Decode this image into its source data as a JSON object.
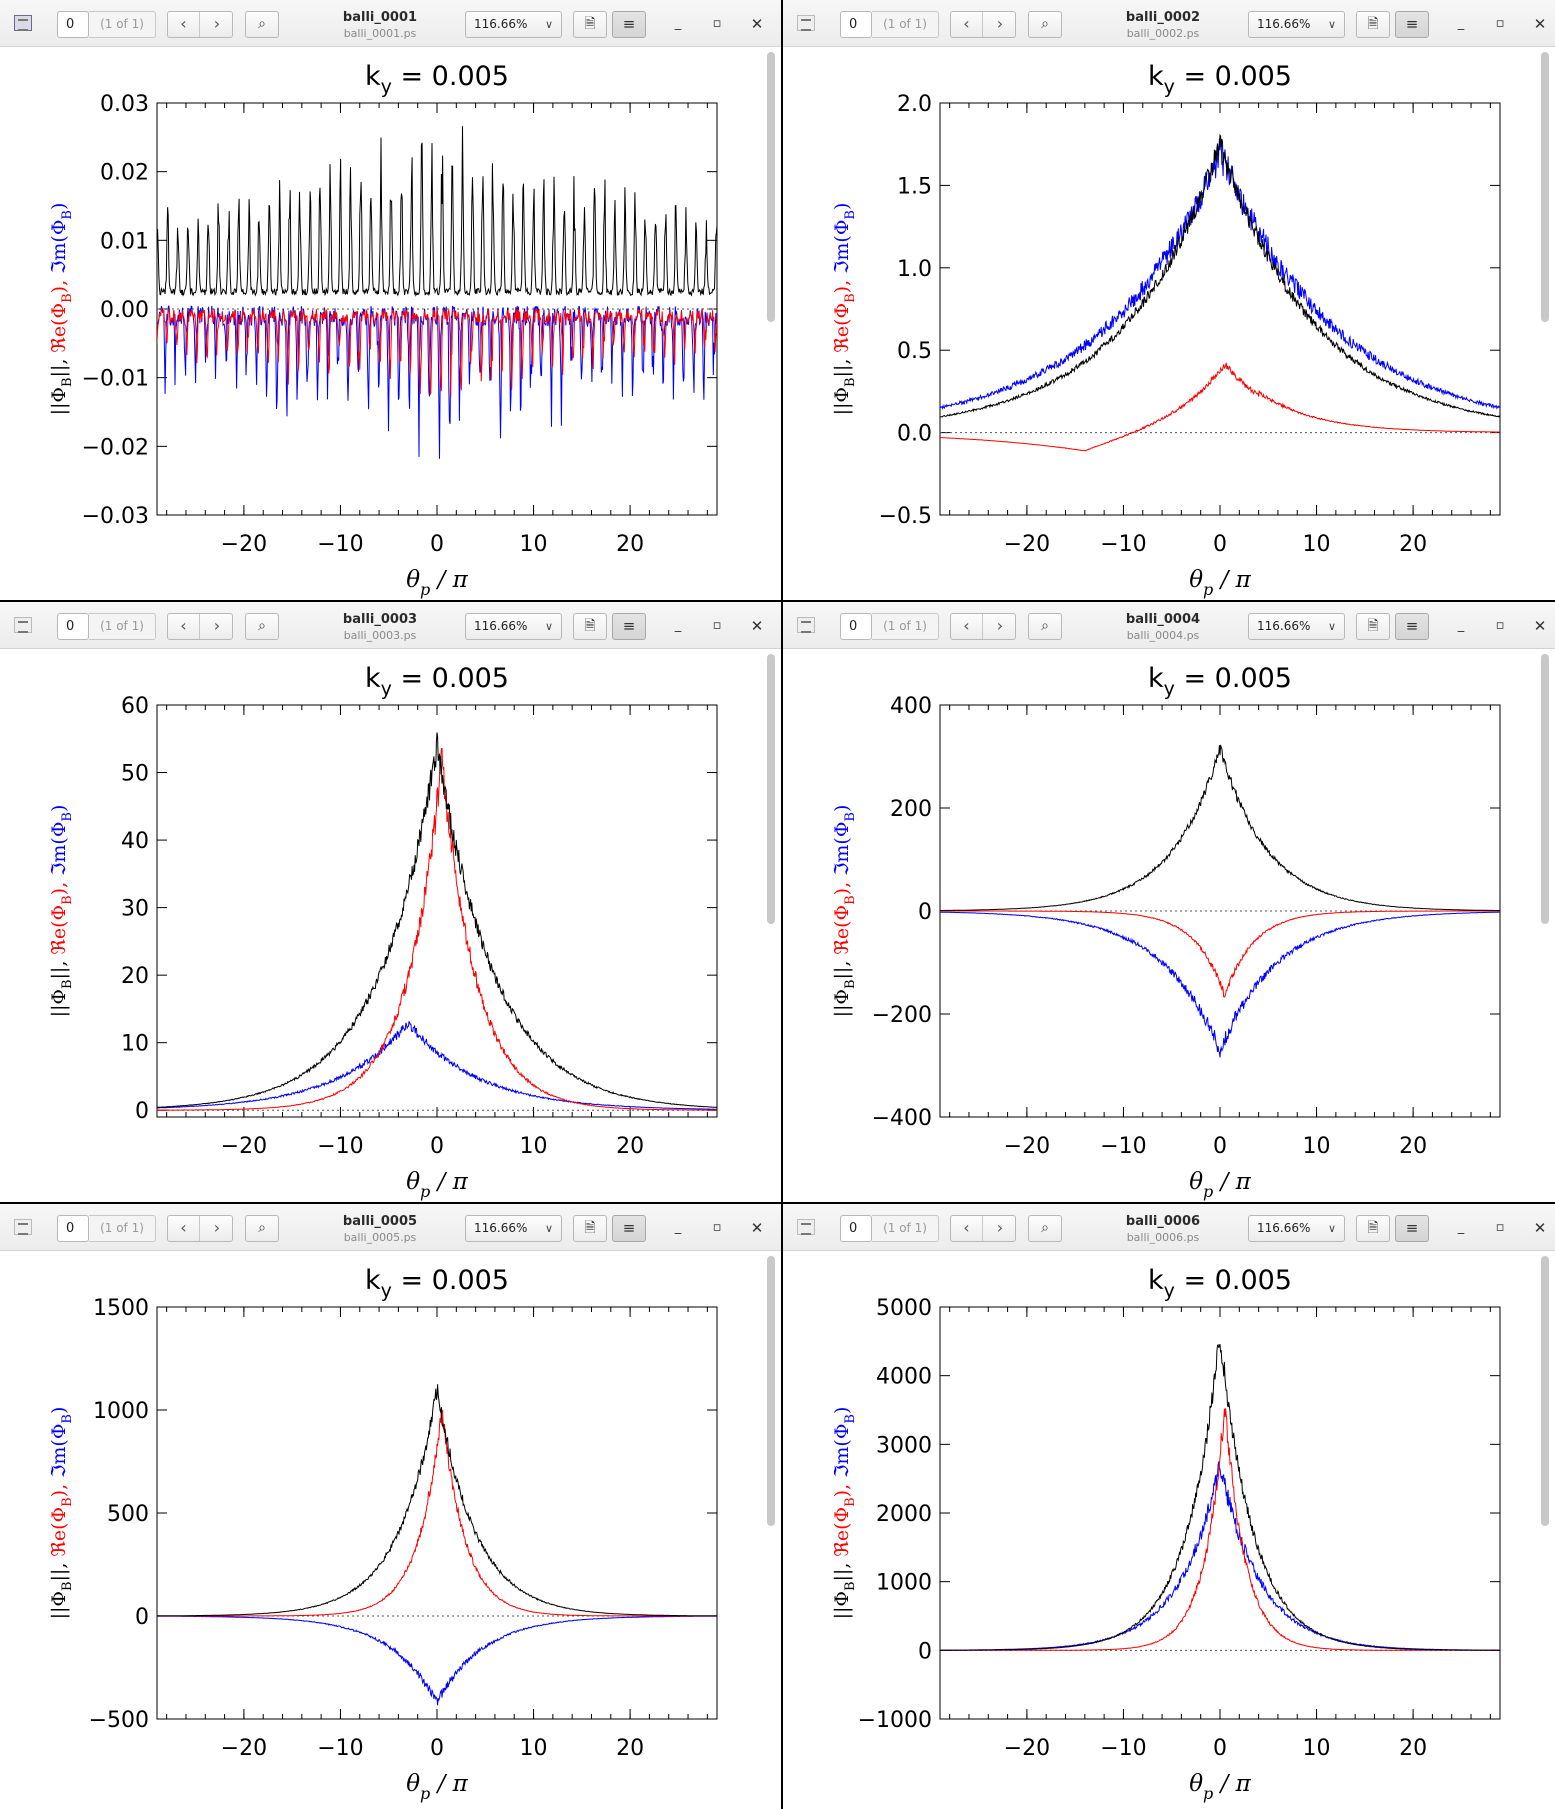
{
  "windows": [
    {
      "id": "w1",
      "title": "balli_0001",
      "file": "balli_0001.ps",
      "page": "0",
      "page_of": "(1 of 1)",
      "zoom": "116.66%",
      "active": true
    },
    {
      "id": "w2",
      "title": "balli_0002",
      "file": "balli_0002.ps",
      "page": "0",
      "page_of": "(1 of 1)",
      "zoom": "116.66%",
      "active": false
    },
    {
      "id": "w3",
      "title": "balli_0003",
      "file": "balli_0003.ps",
      "page": "0",
      "page_of": "(1 of 1)",
      "zoom": "116.66%",
      "active": false
    },
    {
      "id": "w4",
      "title": "balli_0004",
      "file": "balli_0004.ps",
      "page": "0",
      "page_of": "(1 of 1)",
      "zoom": "116.66%",
      "active": false
    },
    {
      "id": "w5",
      "title": "balli_0005",
      "file": "balli_0005.ps",
      "page": "0",
      "page_of": "(1 of 1)",
      "zoom": "116.66%",
      "active": false
    },
    {
      "id": "w6",
      "title": "balli_0006",
      "file": "balli_0006.ps",
      "page": "0",
      "page_of": "(1 of 1)",
      "zoom": "116.66%",
      "active": false
    }
  ],
  "icons": {
    "prev": "chevron-left-icon",
    "next": "chevron-right-icon",
    "find": "search-icon",
    "doc": "document-icon",
    "menu": "hamburger-menu-icon",
    "min": "minimize-icon",
    "max": "maximize-icon",
    "close": "close-icon"
  },
  "colors": {
    "magnitude": "#000000",
    "real": "#ff0000",
    "imag": "#0000ff",
    "zero_line": "#555555"
  },
  "plot_text": {
    "title_main": "k",
    "title_sub": "y",
    "title_value": " = 0.005",
    "xlabel_main": "θ",
    "xlabel_sub": "p",
    "xlabel_rest": " / π",
    "ylabel_mag": "||Φ",
    "ylabel_mag_sub": "B",
    "ylabel_mag_end": "||, ",
    "ylabel_re": "ℜe(Φ",
    "ylabel_re_sub": "B",
    "ylabel_re_end": "), ",
    "ylabel_im": "ℑm(Φ",
    "ylabel_im_sub": "B",
    "ylabel_im_end": ")"
  },
  "chart_data": [
    {
      "type": "line",
      "xlim": [
        -29,
        29
      ],
      "ylim": [
        -0.03,
        0.03
      ],
      "xticks": [
        -20,
        -10,
        0,
        10,
        20
      ],
      "yticks": [
        -0.03,
        -0.02,
        -0.01,
        0.0,
        0.01,
        0.02,
        0.03
      ],
      "ytick_labels": [
        "−0.03",
        "−0.02",
        "−0.01",
        "0.00",
        "0.01",
        "0.02",
        "0.03"
      ],
      "kind": "oscillating",
      "mag_env": [
        0.012,
        0.027
      ],
      "re_env": [
        -0.015,
        0.008
      ],
      "im_env": [
        -0.024,
        0.012
      ]
    },
    {
      "type": "line",
      "xlim": [
        -29,
        29
      ],
      "ylim": [
        -0.5,
        2.0
      ],
      "xticks": [
        -20,
        -10,
        0,
        10,
        20
      ],
      "yticks": [
        -0.5,
        0.0,
        0.5,
        1.0,
        1.5,
        2.0
      ],
      "ytick_labels": [
        "−0.5",
        "0.0",
        "0.5",
        "1.0",
        "1.5",
        "2.0"
      ],
      "kind": "peak",
      "mag_peak": 1.75,
      "re_peak": 0.45,
      "im_peak": 1.7,
      "re_offset": -0.15,
      "width": 10
    },
    {
      "type": "line",
      "xlim": [
        -29,
        29
      ],
      "ylim": [
        -1,
        60
      ],
      "xticks": [
        -20,
        -10,
        0,
        10,
        20
      ],
      "yticks": [
        0,
        10,
        20,
        30,
        40,
        50,
        60
      ],
      "ytick_labels": [
        "0",
        "10",
        "20",
        "30",
        "40",
        "50",
        "60"
      ],
      "kind": "peak",
      "mag_peak": 54,
      "re_peak": 52,
      "im_peak": 13,
      "im_center": -3,
      "width": 6
    },
    {
      "type": "line",
      "xlim": [
        -29,
        29
      ],
      "ylim": [
        -400,
        400
      ],
      "xticks": [
        -20,
        -10,
        0,
        10,
        20
      ],
      "yticks": [
        -400,
        -200,
        0,
        200,
        400
      ],
      "ytick_labels": [
        "−400",
        "−200",
        "0",
        "200",
        "400"
      ],
      "kind": "peak",
      "mag_peak": 315,
      "re_peak": -165,
      "im_peak": -270,
      "width": 5
    },
    {
      "type": "line",
      "xlim": [
        -29,
        29
      ],
      "ylim": [
        -500,
        1500
      ],
      "xticks": [
        -20,
        -10,
        0,
        10,
        20
      ],
      "yticks": [
        -500,
        0,
        500,
        1000,
        1500
      ],
      "ytick_labels": [
        "−500",
        "0",
        "500",
        "1000",
        "1500"
      ],
      "kind": "peak",
      "mag_peak": 1100,
      "re_peak": 1020,
      "im_peak": -420,
      "width": 4
    },
    {
      "type": "line",
      "xlim": [
        -29,
        29
      ],
      "ylim": [
        -1000,
        5000
      ],
      "xticks": [
        -20,
        -10,
        0,
        10,
        20
      ],
      "yticks": [
        -1000,
        0,
        1000,
        2000,
        3000,
        4000,
        5000
      ],
      "ytick_labels": [
        "−1000",
        "0",
        "1000",
        "2000",
        "3000",
        "4000",
        "5000"
      ],
      "kind": "peak",
      "mag_peak": 4600,
      "re_peak": 3600,
      "im_peak": 2700,
      "width": 3.5
    }
  ]
}
